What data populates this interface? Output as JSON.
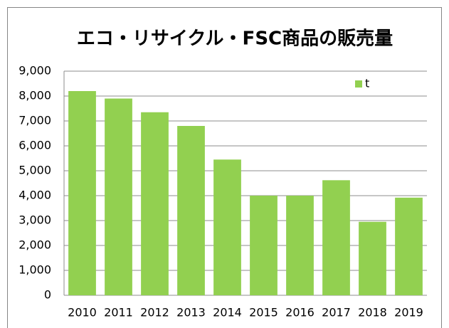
{
  "chart_data": {
    "type": "bar",
    "title": "エコ・リサイクル・FSC商品の販売量",
    "categories": [
      "2010",
      "2011",
      "2012",
      "2013",
      "2014",
      "2015",
      "2016",
      "2017",
      "2018",
      "2019"
    ],
    "series": [
      {
        "name": "t",
        "color": "#92d050",
        "values": [
          8200,
          7900,
          7350,
          6800,
          5450,
          4000,
          4000,
          4620,
          2950,
          3920
        ]
      }
    ],
    "ylim": [
      0,
      9000
    ],
    "yticks": [
      0,
      {
        "value": 1000,
        "label": "1,000"
      },
      {
        "value": 2000,
        "label": "2,000"
      },
      {
        "value": 3000,
        "label": "3,000"
      },
      {
        "value": 4000,
        "label": "4,000"
      },
      {
        "value": 5000,
        "label": "5,000"
      },
      {
        "value": 6000,
        "label": "6,000"
      },
      {
        "value": 7000,
        "label": "7,000"
      },
      {
        "value": 8000,
        "label": "8,000"
      },
      {
        "value": 9000,
        "label": "9,000"
      }
    ],
    "grid": true,
    "legend": "top-right"
  }
}
